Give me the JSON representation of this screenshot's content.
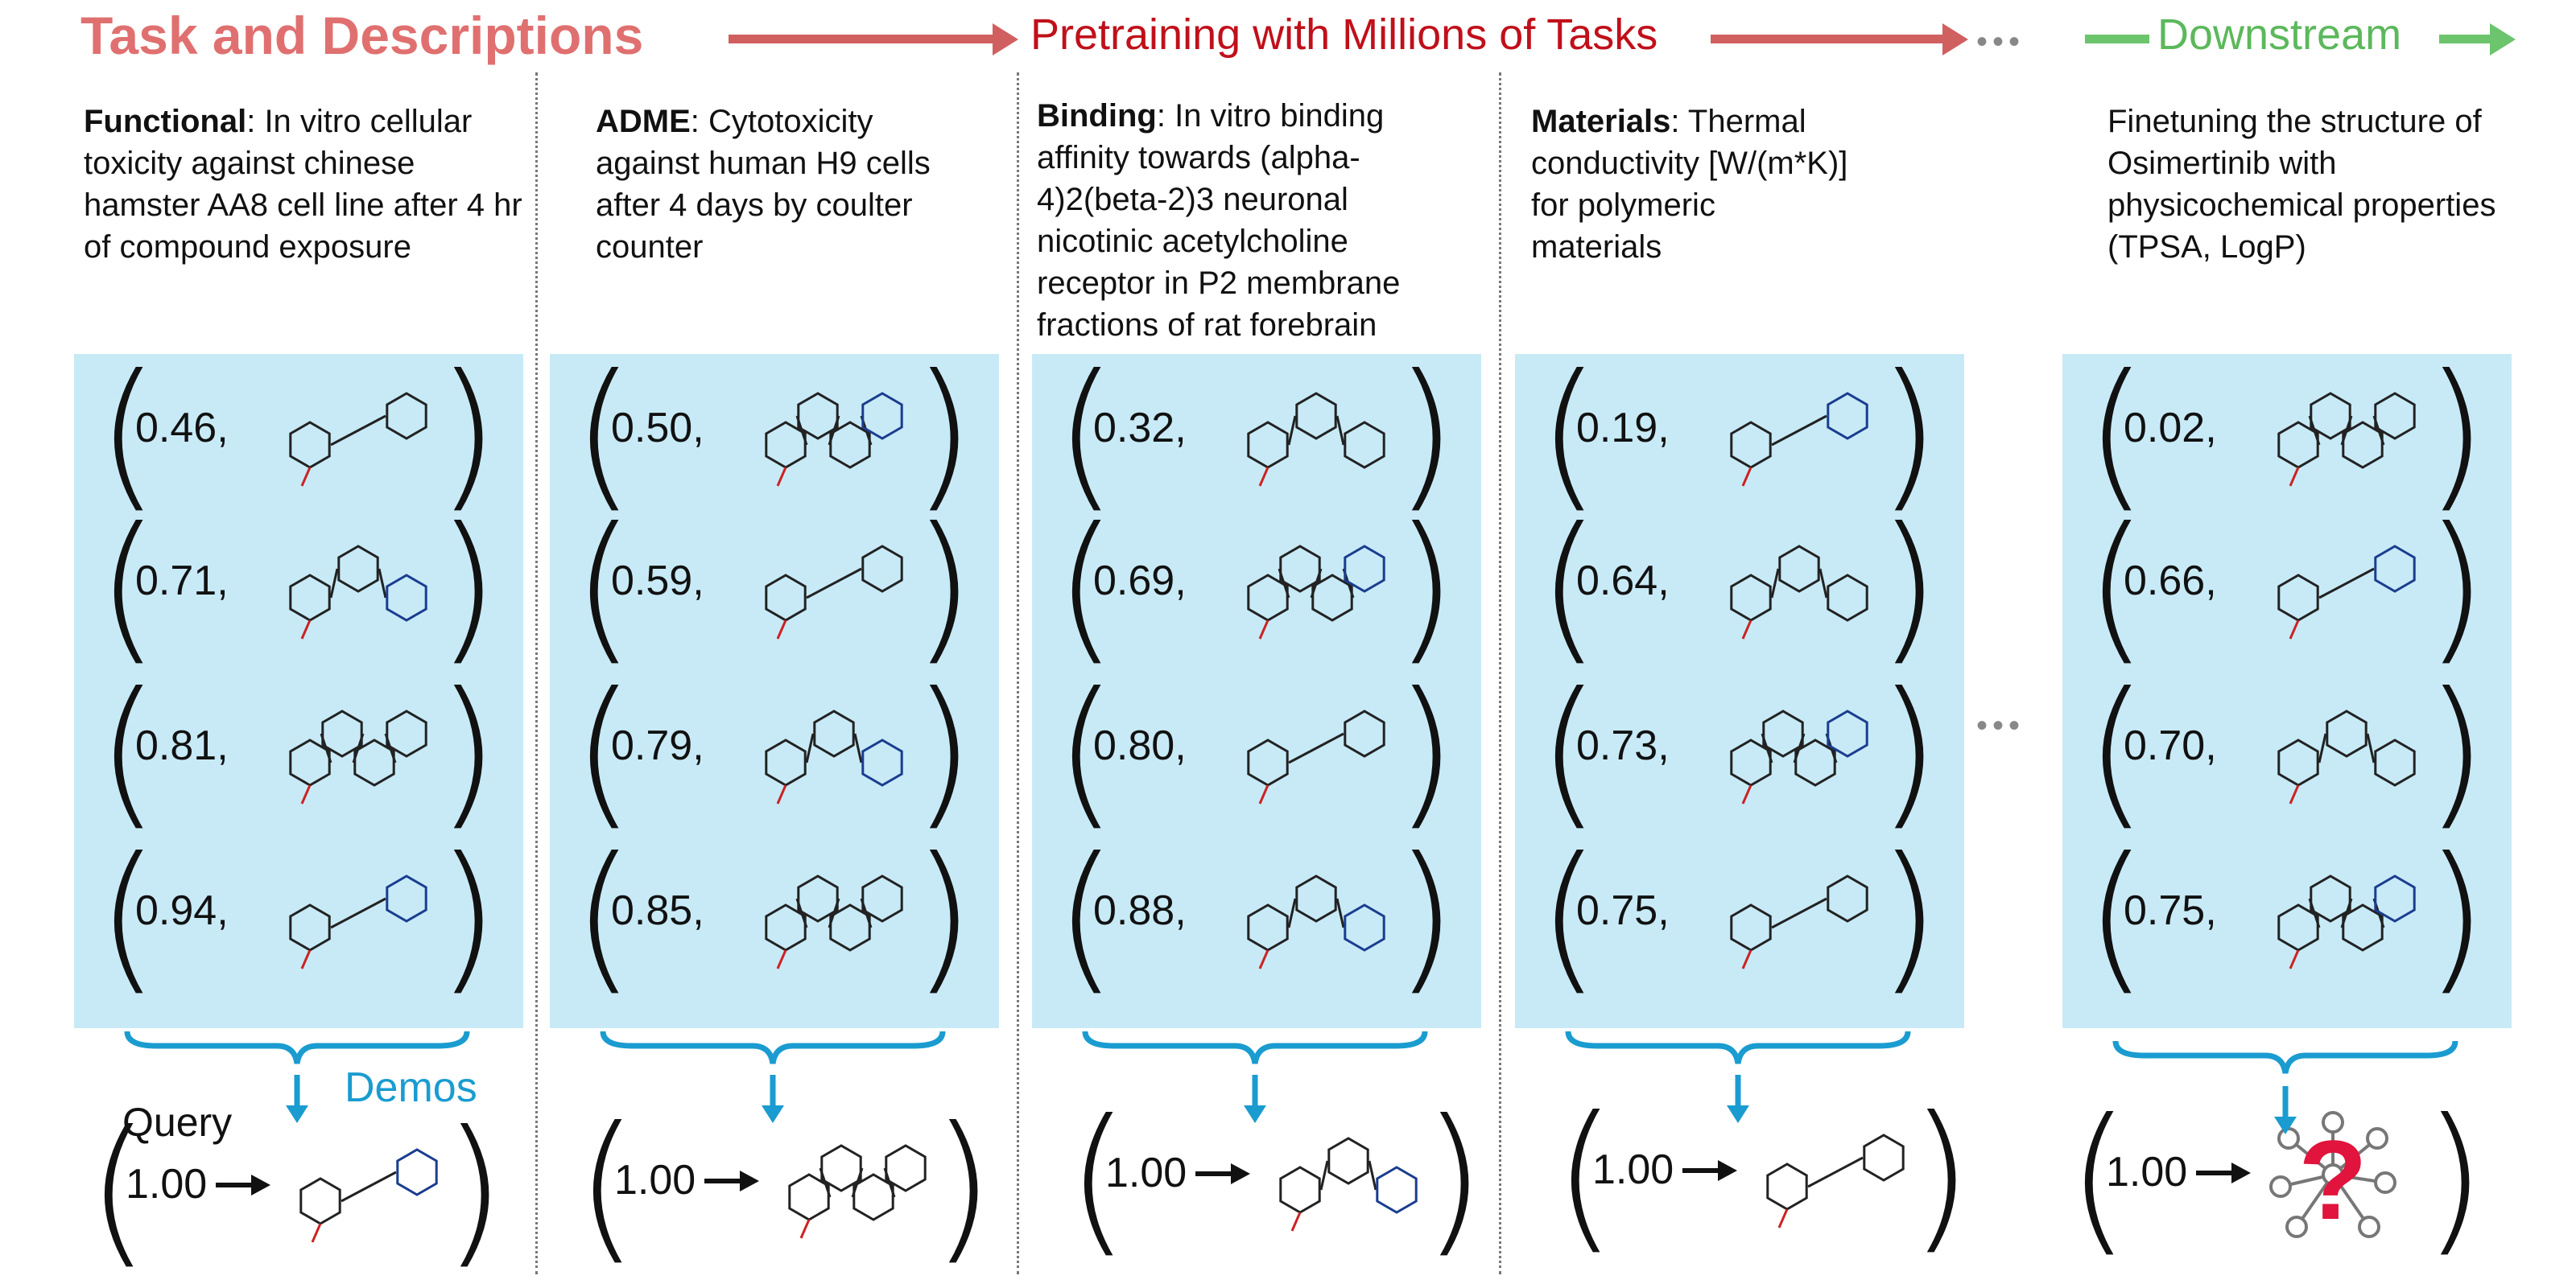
{
  "header": {
    "title": "Task and Descriptions",
    "pretrain": "Pretraining with Millions of Tasks",
    "downstream": "Downstream",
    "dots": "•••"
  },
  "colors": {
    "title": "#e07070",
    "pretrain": "#c0101a",
    "downstream": "#5cb85c",
    "panel": "#c8eaf7",
    "accent": "#1a9cd0"
  },
  "tasks": [
    {
      "bold": "Functional",
      "text": ": In vitro cellular toxicity against chinese hamster AA8 cell line after 4 hr of compound exposure",
      "values": [
        "0.46,",
        "0.71,",
        "0.81,",
        "0.94,"
      ],
      "query": "1.00"
    },
    {
      "bold": "ADME",
      "text": ": Cytotoxicity against human H9 cells after 4 days by coulter counter",
      "values": [
        "0.50,",
        "0.59,",
        "0.79,",
        "0.85,"
      ],
      "query": "1.00"
    },
    {
      "bold": "Binding",
      "text": ": In vitro binding affinity towards (alpha-4)2(beta-2)3 neuronal nicotinic acetylcholine receptor in P2 membrane fractions of rat forebrain",
      "values": [
        "0.32,",
        "0.69,",
        "0.80,",
        "0.88,"
      ],
      "query": "1.00"
    },
    {
      "bold": "Materials",
      "text": ": Thermal conductivity [W/(m*K)] for polymeric materials",
      "values": [
        "0.19,",
        "0.64,",
        "0.73,",
        "0.75,"
      ],
      "query": "1.00"
    },
    {
      "bold": "",
      "text": "Finetuning the structure of Osimertinib with physicochemical properties (TPSA, LogP)",
      "values": [
        "0.02,",
        "0.66,",
        "0.70,",
        "0.75,"
      ],
      "query": "1.00"
    }
  ],
  "labels": {
    "query": "Query",
    "demos": "Demos",
    "mid_dots": "•••"
  }
}
